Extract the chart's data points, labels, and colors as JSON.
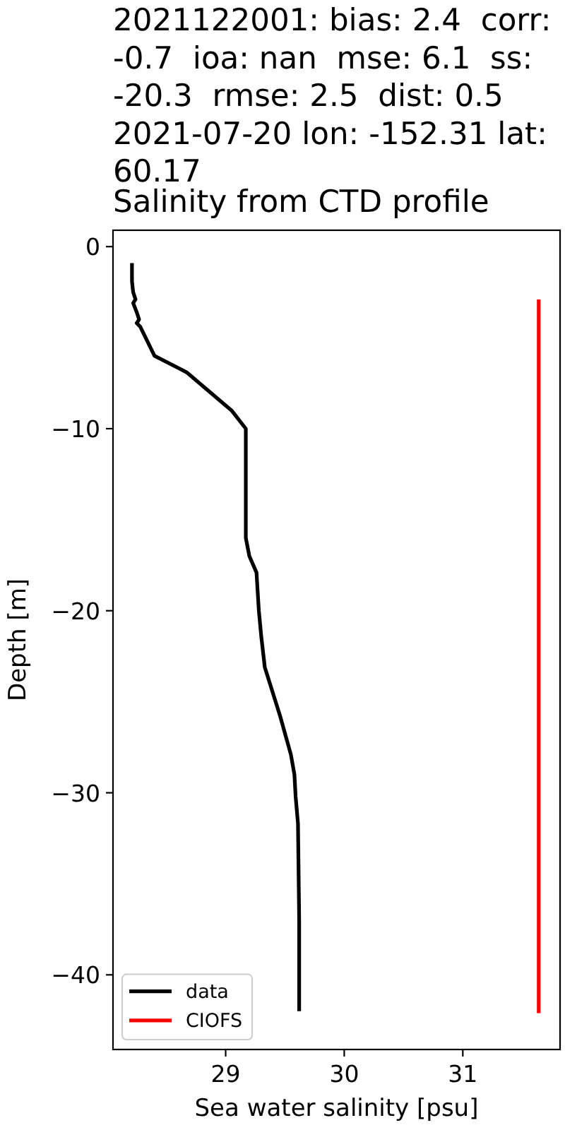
{
  "chart_data": {
    "type": "line",
    "title": "2021122001: bias: 2.4  corr: -0.7  ioa: nan  mse: 6.1  ss: -20.3  rmse: 2.5  dist: 0.5\n2021-07-20 lon: -152.31 lat: 60.17",
    "subtitle": "Salinity from CTD profile",
    "xlabel": "Sea water salinity [psu]",
    "ylabel": "Depth [m]",
    "xlim": [
      28.05,
      31.82
    ],
    "ylim": [
      -44.1,
      0.9
    ],
    "xticks": [
      29,
      30,
      31
    ],
    "yticks": [
      -40,
      -30,
      -20,
      -10,
      0
    ],
    "legend": "bottom left",
    "series": [
      {
        "name": "data",
        "color": "#000000",
        "x": [
          28.21,
          28.21,
          28.22,
          28.24,
          28.22,
          28.25,
          28.27,
          28.25,
          28.28,
          28.4,
          28.67,
          29.05,
          29.17,
          29.17,
          29.2,
          29.26,
          29.28,
          29.3,
          29.33,
          29.46,
          29.55,
          29.58,
          29.59,
          29.61,
          29.62,
          29.62
        ],
        "values": [
          -0.9,
          -1.9,
          -2.5,
          -2.9,
          -3.1,
          -3.6,
          -4.0,
          -4.2,
          -4.4,
          -6.0,
          -6.9,
          -9.0,
          -10.0,
          -16.0,
          -17.0,
          -17.9,
          -20.0,
          -21.4,
          -23.1,
          -25.8,
          -27.9,
          -29.0,
          -30.2,
          -31.7,
          -37.0,
          -42.0
        ]
      },
      {
        "name": "CIOFS",
        "color": "#ff0000",
        "x": [
          31.64,
          31.64
        ],
        "values": [
          -2.9,
          -42.1
        ]
      }
    ]
  }
}
